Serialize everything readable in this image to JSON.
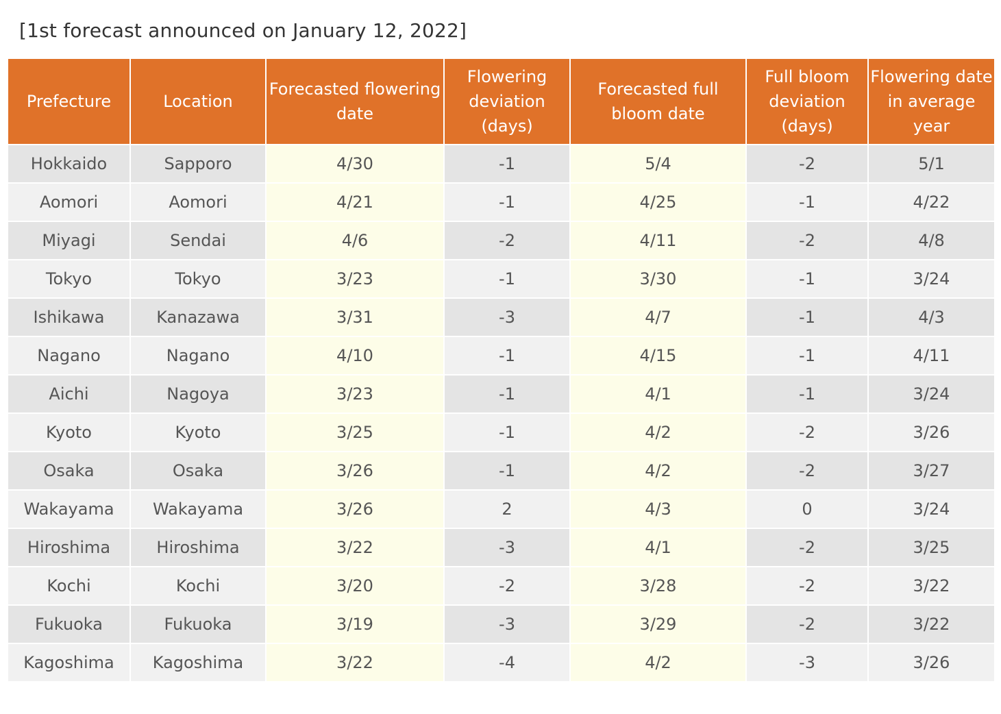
{
  "caption": "[1st forecast announced on January 12, 2022]",
  "table": {
    "headers": [
      "Prefecture",
      "Location",
      "Forecasted flowering date",
      "Flowering deviation (days)",
      "Forecasted full bloom date",
      "Full bloom deviation (days)",
      "Flowering date in average year"
    ],
    "rows": [
      [
        "Hokkaido",
        "Sapporo",
        "4/30",
        "-1",
        "5/4",
        "-2",
        "5/1"
      ],
      [
        "Aomori",
        "Aomori",
        "4/21",
        "-1",
        "4/25",
        "-1",
        "4/22"
      ],
      [
        "Miyagi",
        "Sendai",
        "4/6",
        "-2",
        "4/11",
        "-2",
        "4/8"
      ],
      [
        "Tokyo",
        "Tokyo",
        "3/23",
        "-1",
        "3/30",
        "-1",
        "3/24"
      ],
      [
        "Ishikawa",
        "Kanazawa",
        "3/31",
        "-3",
        "4/7",
        "-1",
        "4/3"
      ],
      [
        "Nagano",
        "Nagano",
        "4/10",
        "-1",
        "4/15",
        "-1",
        "4/11"
      ],
      [
        "Aichi",
        "Nagoya",
        "3/23",
        "-1",
        "4/1",
        "-1",
        "3/24"
      ],
      [
        "Kyoto",
        "Kyoto",
        "3/25",
        "-1",
        "4/2",
        "-2",
        "3/26"
      ],
      [
        "Osaka",
        "Osaka",
        "3/26",
        "-1",
        "4/2",
        "-2",
        "3/27"
      ],
      [
        "Wakayama",
        "Wakayama",
        "3/26",
        "2",
        "4/3",
        "0",
        "3/24"
      ],
      [
        "Hiroshima",
        "Hiroshima",
        "3/22",
        "-3",
        "4/1",
        "-2",
        "3/25"
      ],
      [
        "Kochi",
        "Kochi",
        "3/20",
        "-2",
        "3/28",
        "-2",
        "3/22"
      ],
      [
        "Fukuoka",
        "Fukuoka",
        "3/19",
        "-3",
        "3/29",
        "-2",
        "3/22"
      ],
      [
        "Kagoshima",
        "Kagoshima",
        "3/22",
        "-4",
        "4/2",
        "-3",
        "3/26"
      ]
    ]
  },
  "colors": {
    "header_bg": "#e07229",
    "header_text": "#ffffff",
    "row_odd": "#e4e4e4",
    "row_even": "#f1f1f1",
    "highlight_column": "#fdfde8"
  }
}
